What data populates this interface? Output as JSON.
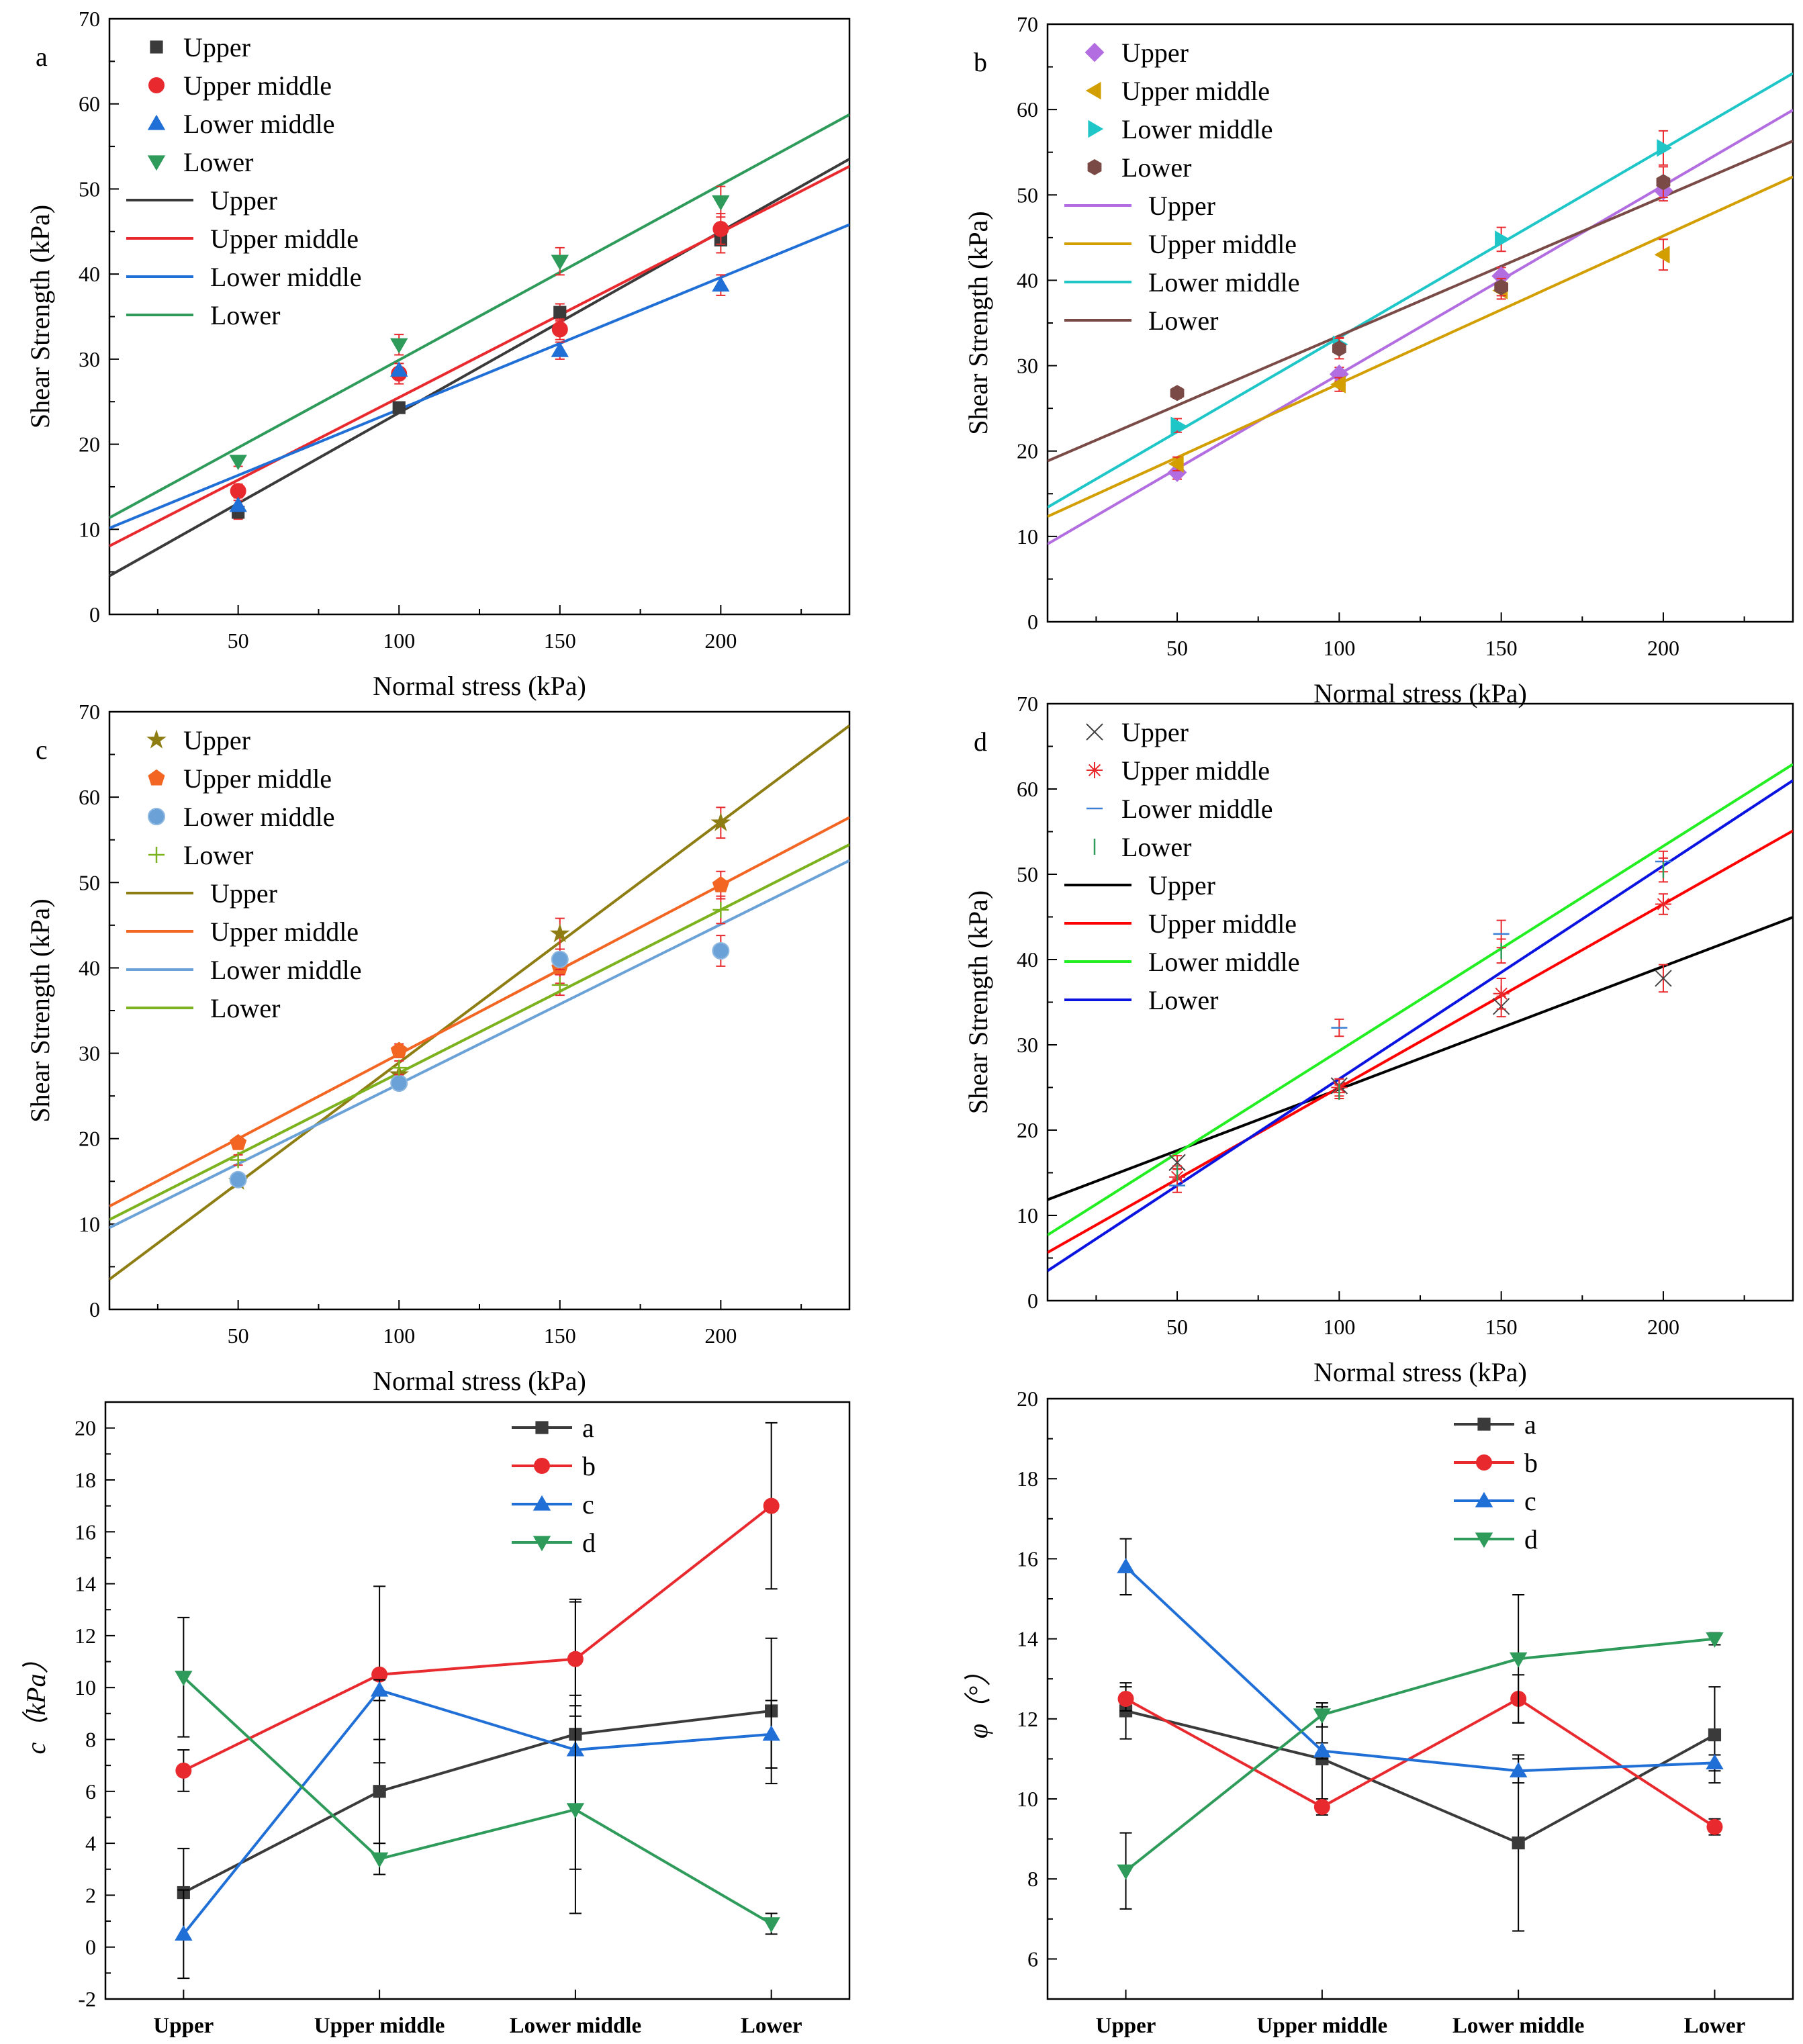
{
  "chart_data": [
    {
      "id": "a",
      "type": "scatter",
      "panel_label": "a",
      "xlabel": "Normal stress (kPa)",
      "ylabel": "Shear Strength (kPa)",
      "xlim": [
        10,
        240
      ],
      "ylim": [
        0,
        70
      ],
      "xticks": [
        50,
        100,
        150,
        200
      ],
      "yticks": [
        0,
        10,
        20,
        30,
        40,
        50,
        60,
        70
      ],
      "x": [
        50,
        100,
        150,
        200
      ],
      "series": [
        {
          "name": "Upper",
          "color": "#3a3a3a",
          "marker": "square",
          "values": [
            12,
            24.3,
            35.5,
            44
          ],
          "errors": [
            0.8,
            0.6,
            1.0,
            1.5
          ],
          "fit": {
            "slope": 0.213,
            "intercept": 2.4
          }
        },
        {
          "name": "Upper middle",
          "color": "#e8292e",
          "marker": "circle",
          "values": [
            14.5,
            28.3,
            33.5,
            45.3
          ],
          "errors": [
            0.8,
            1.2,
            1.2,
            1.8
          ],
          "fit": {
            "slope": 0.194,
            "intercept": 6.1
          }
        },
        {
          "name": "Lower middle",
          "color": "#1f6fd6",
          "marker": "triangle-up",
          "values": [
            12.8,
            28.7,
            31,
            38.7
          ],
          "errors": [
            0.6,
            0.8,
            1.0,
            1.2
          ],
          "fit": {
            "slope": 0.155,
            "intercept": 8.6
          }
        },
        {
          "name": "Lower",
          "color": "#2e9b5a",
          "marker": "triangle-down",
          "values": [
            18,
            31.7,
            41.5,
            48.5
          ],
          "errors": [
            0.6,
            1.2,
            1.6,
            1.8
          ],
          "fit": {
            "slope": 0.206,
            "intercept": 9.3
          }
        }
      ]
    },
    {
      "id": "b",
      "type": "scatter",
      "panel_label": "b",
      "xlabel": "Normal stress (kPa)",
      "ylabel": "Shear Strength (kPa)",
      "xlim": [
        10,
        240
      ],
      "ylim": [
        0,
        70
      ],
      "xticks": [
        50,
        100,
        150,
        200
      ],
      "yticks": [
        0,
        10,
        20,
        30,
        40,
        50,
        60,
        70
      ],
      "x": [
        50,
        100,
        150,
        200
      ],
      "series": [
        {
          "name": "Upper",
          "color": "#b26ee0",
          "marker": "diamond",
          "values": [
            17.5,
            29,
            40.5,
            50.5
          ],
          "errors": [
            0.8,
            0.8,
            1.0,
            1.2
          ],
          "fit": {
            "slope": 0.221,
            "intercept": 6.9
          }
        },
        {
          "name": "Upper middle",
          "color": "#d39e00",
          "marker": "triangle-left",
          "values": [
            18.5,
            27.8,
            38.8,
            43
          ],
          "errors": [
            0.8,
            0.8,
            1.0,
            1.8
          ],
          "fit": {
            "slope": 0.173,
            "intercept": 10.6
          }
        },
        {
          "name": "Lower middle",
          "color": "#1ec6c8",
          "marker": "triangle-right",
          "values": [
            23,
            32.5,
            44.8,
            55.5
          ],
          "errors": [
            0.8,
            0.8,
            1.4,
            2.0
          ],
          "fit": {
            "slope": 0.221,
            "intercept": 11.2
          }
        },
        {
          "name": "Lower",
          "color": "#7a4a46",
          "marker": "hexagon",
          "values": [
            26.8,
            32,
            39.2,
            51.5
          ],
          "errors": [
            0.6,
            1.2,
            1.0,
            1.8
          ],
          "fit": {
            "slope": 0.163,
            "intercept": 17.2
          }
        }
      ]
    },
    {
      "id": "c",
      "type": "scatter",
      "panel_label": "c",
      "xlabel": "Normal stress (kPa)",
      "ylabel": "Shear Strength (kPa)",
      "xlim": [
        10,
        240
      ],
      "ylim": [
        0,
        70
      ],
      "xticks": [
        50,
        100,
        150,
        200
      ],
      "yticks": [
        0,
        10,
        20,
        30,
        40,
        50,
        60,
        70
      ],
      "x": [
        50,
        100,
        150,
        200
      ],
      "series": [
        {
          "name": "Upper",
          "color": "#8d7d12",
          "marker": "star",
          "values": [
            15,
            27.5,
            44,
            57
          ],
          "errors": [
            0.6,
            0.8,
            1.8,
            1.8
          ],
          "fit": {
            "slope": 0.282,
            "intercept": 0.7
          }
        },
        {
          "name": "Upper middle",
          "color": "#f26522",
          "marker": "pentagon",
          "values": [
            19.5,
            30.3,
            40,
            49.7
          ],
          "errors": [
            0.6,
            0.8,
            1.8,
            1.6
          ],
          "fit": {
            "slope": 0.198,
            "intercept": 10.1
          }
        },
        {
          "name": "Lower middle",
          "color": "#6aa1d6",
          "marker": "sphere",
          "values": [
            15.2,
            26.5,
            41,
            42
          ],
          "errors": [
            0.6,
            0.8,
            1.2,
            1.8
          ],
          "fit": {
            "slope": 0.187,
            "intercept": 7.7
          }
        },
        {
          "name": "Lower",
          "color": "#7bb21e",
          "marker": "plus",
          "values": [
            17.5,
            28.3,
            38,
            46.8
          ],
          "errors": [
            0.6,
            0.8,
            1.2,
            1.6
          ],
          "fit": {
            "slope": 0.191,
            "intercept": 8.6
          }
        }
      ]
    },
    {
      "id": "d",
      "type": "scatter",
      "panel_label": "d",
      "xlabel": "Normal stress (kPa)",
      "ylabel": "Shear Strength (kPa)",
      "xlim": [
        10,
        240
      ],
      "ylim": [
        0,
        70
      ],
      "xticks": [
        50,
        100,
        150,
        200
      ],
      "yticks": [
        0,
        10,
        20,
        30,
        40,
        50,
        60,
        70
      ],
      "x": [
        50,
        100,
        150,
        200
      ],
      "series": [
        {
          "name": "Upper",
          "line_color": "#000000",
          "marker_color": "#444444",
          "marker": "x",
          "values": [
            16.2,
            25.2,
            34.5,
            37.8
          ],
          "errors": [
            0.8,
            0.8,
            1.2,
            1.6
          ],
          "fit": {
            "slope": 0.144,
            "intercept": 10.4
          }
        },
        {
          "name": "Upper middle",
          "line_color": "#ff0000",
          "marker_color": "#e8292e",
          "marker": "asterisk",
          "values": [
            14.5,
            25,
            36,
            46.5
          ],
          "errors": [
            1.0,
            1.0,
            1.8,
            1.2
          ],
          "fit": {
            "slope": 0.215,
            "intercept": 3.5
          }
        },
        {
          "name": "Lower middle",
          "line_color": "#22ee22",
          "marker_color": "#3a7fd6",
          "marker": "hline",
          "values": [
            13.5,
            32,
            43,
            51.5
          ],
          "errors": [
            0.8,
            1.0,
            1.6,
            1.2
          ],
          "fit": {
            "slope": 0.24,
            "intercept": 5.3
          }
        },
        {
          "name": "Lower",
          "line_color": "#0a13e0",
          "marker_color": "#2e9b5a",
          "marker": "vline",
          "values": [
            15,
            24.5,
            41,
            50.5
          ],
          "errors": [
            0.8,
            0.8,
            1.4,
            1.4
          ],
          "fit": {
            "slope": 0.25,
            "intercept": 1.0
          }
        }
      ]
    },
    {
      "id": "e",
      "type": "line",
      "xlabel": "",
      "ylabel": "c（kPa）",
      "ylim": [
        -2,
        21
      ],
      "yticks": [
        -2,
        0,
        2,
        4,
        6,
        8,
        10,
        12,
        14,
        16,
        18,
        20
      ],
      "categories": [
        "Upper",
        "Upper middle",
        "Lower middle",
        "Lower"
      ],
      "series": [
        {
          "name": "a",
          "color": "#3a3a3a",
          "marker": "square",
          "values": [
            2.1,
            6.0,
            8.2,
            9.1
          ],
          "errors": [
            1.7,
            2.0,
            5.2,
            2.8
          ]
        },
        {
          "name": "b",
          "color": "#e8292e",
          "marker": "circle",
          "values": [
            6.8,
            10.5,
            11.1,
            17.0
          ],
          "errors": [
            0.8,
            3.4,
            2.2,
            3.2
          ]
        },
        {
          "name": "c",
          "color": "#1f6fd6",
          "marker": "triangle-up",
          "values": [
            0.5,
            9.9,
            7.6,
            8.2
          ],
          "errors": [
            1.7,
            0.4,
            2.1,
            1.3
          ]
        },
        {
          "name": "d",
          "color": "#2e9b5a",
          "marker": "triangle-down",
          "values": [
            10.4,
            3.4,
            5.3,
            0.9
          ],
          "errors": [
            2.3,
            0.6,
            4.0,
            0.4
          ]
        }
      ]
    },
    {
      "id": "f",
      "type": "line",
      "xlabel": "",
      "ylabel": "φ（°）",
      "ylim": [
        5,
        20
      ],
      "yticks": [
        6,
        8,
        10,
        12,
        14,
        16,
        18,
        20
      ],
      "categories": [
        "Upper",
        "Upper middle",
        "Lower middle",
        "Lower"
      ],
      "series": [
        {
          "name": "a",
          "color": "#3a3a3a",
          "marker": "square",
          "values": [
            12.2,
            11.0,
            8.9,
            11.6
          ],
          "errors": [
            0.7,
            1.3,
            2.2,
            1.2
          ]
        },
        {
          "name": "b",
          "color": "#e8292e",
          "marker": "circle",
          "values": [
            12.5,
            9.8,
            12.5,
            9.3
          ],
          "errors": [
            0.3,
            0.2,
            0.6,
            0.2
          ]
        },
        {
          "name": "c",
          "color": "#1f6fd6",
          "marker": "triangle-up",
          "values": [
            15.8,
            11.2,
            10.7,
            10.9
          ],
          "errors": [
            0.7,
            0.2,
            0.3,
            0.2
          ]
        },
        {
          "name": "d",
          "color": "#2e9b5a",
          "marker": "triangle-down",
          "values": [
            8.2,
            12.1,
            13.5,
            14.0
          ],
          "errors": [
            0.95,
            0.3,
            1.6,
            0.15
          ]
        }
      ]
    }
  ]
}
